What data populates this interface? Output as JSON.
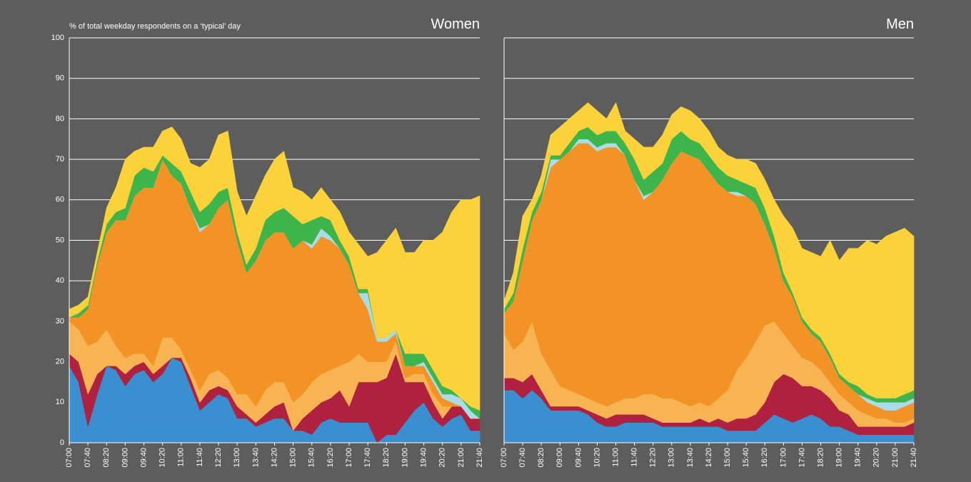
{
  "chart_data": [
    {
      "type": "area",
      "stacked": true,
      "title": "Women",
      "ylabel": "% of total weekday respondents on a ‘typical’ day",
      "categories": [
        "07:00",
        null,
        "07:40",
        null,
        "08:20",
        null,
        "09:00",
        null,
        "09:40",
        null,
        "10:20",
        null,
        "11:00",
        null,
        "11:40",
        null,
        "12:20",
        null,
        "13:00",
        null,
        "13:40",
        null,
        "14:20",
        null,
        "15:00",
        null,
        "15:40",
        null,
        "16:20",
        null,
        "17:00",
        null,
        "17:40",
        null,
        "18:20",
        null,
        "19:00",
        null,
        "19:40",
        null,
        "20:20",
        null,
        "21:00",
        null,
        "21:40"
      ],
      "ylim": [
        0,
        100
      ],
      "yticks": [
        0,
        10,
        20,
        30,
        40,
        50,
        60,
        70,
        80,
        90,
        100
      ],
      "grid": true,
      "series": [
        {
          "color": "#3a8fd0",
          "values": [
            19,
            15,
            4,
            12,
            19,
            18,
            14,
            17,
            18,
            15,
            17,
            21,
            20,
            14,
            8,
            10,
            12,
            11,
            6,
            6,
            4,
            5,
            6,
            6,
            3,
            3,
            2,
            5,
            6,
            5,
            5,
            5,
            5,
            0,
            2,
            2,
            5,
            8,
            10,
            6,
            4,
            6,
            7,
            3,
            3
          ]
        },
        {
          "color": "#b0203f",
          "values": [
            3,
            5,
            8,
            5,
            0,
            1,
            3,
            2,
            2,
            2,
            2,
            0,
            1,
            2,
            2,
            3,
            2,
            2,
            3,
            1,
            1,
            2,
            3,
            4,
            0,
            3,
            6,
            5,
            5,
            8,
            4,
            10,
            10,
            15,
            14,
            20,
            10,
            7,
            5,
            4,
            2,
            3,
            2,
            3,
            3
          ]
        },
        {
          "color": "#f8b452",
          "values": [
            8,
            8,
            12,
            8,
            9,
            5,
            4,
            3,
            2,
            2,
            7,
            5,
            2,
            2,
            3,
            4,
            4,
            3,
            3,
            5,
            4,
            6,
            6,
            5,
            7,
            6,
            7,
            7,
            7,
            6,
            11,
            7,
            5,
            5,
            4,
            3,
            1,
            2,
            2,
            2,
            3,
            0,
            0,
            0,
            0
          ]
        },
        {
          "color": "#f39325",
          "values": [
            1,
            3,
            9,
            19,
            24,
            31,
            34,
            39,
            41,
            44,
            44,
            40,
            41,
            40,
            39,
            37,
            40,
            44,
            38,
            30,
            36,
            37,
            37,
            37,
            38,
            38,
            33,
            34,
            32,
            29,
            24,
            15,
            13,
            5,
            5,
            2,
            3,
            2,
            2,
            3,
            2,
            1,
            0,
            0,
            0
          ]
        },
        {
          "color": "#a8dce9",
          "values": [
            0,
            0,
            0,
            0,
            0,
            0,
            0,
            0,
            0,
            0,
            0,
            0,
            0,
            0,
            1,
            0,
            0,
            0,
            0,
            0,
            0,
            0,
            0,
            0,
            0,
            0,
            1,
            2,
            1,
            0,
            0,
            0,
            4,
            1,
            1,
            1,
            0,
            0,
            1,
            1,
            1,
            2,
            2,
            2,
            0
          ]
        },
        {
          "color": "#3db54a",
          "values": [
            0,
            1,
            1,
            1,
            2,
            2,
            3,
            5,
            5,
            4,
            1,
            3,
            3,
            4,
            4,
            5,
            4,
            3,
            2,
            2,
            3,
            5,
            5,
            6,
            8,
            4,
            6,
            3,
            4,
            2,
            2,
            1,
            1,
            0,
            0,
            0,
            3,
            3,
            2,
            2,
            2,
            1,
            0,
            1,
            2
          ]
        },
        {
          "color": "#fcd23b",
          "values": [
            2,
            2,
            2,
            2,
            4,
            6,
            12,
            6,
            5,
            6,
            6,
            9,
            8,
            7,
            11,
            11,
            14,
            14,
            10,
            12,
            13,
            11,
            13,
            14,
            7,
            8,
            5,
            7,
            5,
            7,
            6,
            11,
            8,
            21,
            24,
            25,
            25,
            25,
            28,
            32,
            38,
            44,
            49,
            51,
            53
          ]
        }
      ]
    },
    {
      "type": "area",
      "stacked": true,
      "title": "Men",
      "categories": [
        "07:00",
        null,
        "07:40",
        null,
        "08:20",
        null,
        "09:00",
        null,
        "09:40",
        null,
        "10:20",
        null,
        "11:00",
        null,
        "11:40",
        null,
        "12:20",
        null,
        "13:00",
        null,
        "13:40",
        null,
        "14:20",
        null,
        "15:00",
        null,
        "15:40",
        null,
        "16:20",
        null,
        "17:00",
        null,
        "17:40",
        null,
        "18:20",
        null,
        "19:00",
        null,
        "19:40",
        null,
        "20:20",
        null,
        "21:00",
        null,
        "21:40"
      ],
      "ylim": [
        0,
        100
      ],
      "yticks": [
        0,
        10,
        20,
        30,
        40,
        50,
        60,
        70,
        80,
        90,
        100
      ],
      "grid": true,
      "series": [
        {
          "color": "#3a8fd0",
          "values": [
            13,
            13,
            11,
            13,
            11,
            8,
            8,
            8,
            8,
            7,
            5,
            4,
            4,
            5,
            5,
            5,
            5,
            4,
            4,
            4,
            4,
            4,
            4,
            4,
            3,
            3,
            3,
            3,
            5,
            7,
            6,
            5,
            6,
            7,
            6,
            4,
            4,
            3,
            2,
            2,
            2,
            2,
            2,
            2,
            2
          ]
        },
        {
          "color": "#b0203f",
          "values": [
            3,
            3,
            4,
            4,
            2,
            1,
            1,
            1,
            1,
            1,
            2,
            2,
            3,
            2,
            2,
            2,
            1,
            1,
            1,
            1,
            1,
            2,
            1,
            2,
            2,
            3,
            3,
            4,
            5,
            8,
            11,
            11,
            8,
            7,
            7,
            7,
            4,
            4,
            2,
            2,
            2,
            2,
            2,
            2,
            3
          ]
        },
        {
          "color": "#f8b452",
          "values": [
            11,
            7,
            10,
            13,
            9,
            9,
            5,
            4,
            3,
            3,
            3,
            3,
            3,
            4,
            4,
            5,
            6,
            6,
            6,
            5,
            4,
            4,
            4,
            5,
            8,
            12,
            15,
            18,
            19,
            15,
            10,
            8,
            7,
            6,
            5,
            4,
            4,
            3,
            4,
            3,
            2,
            2,
            1,
            1,
            1
          ]
        },
        {
          "color": "#f39325",
          "values": [
            5,
            12,
            20,
            25,
            38,
            50,
            56,
            59,
            62,
            63,
            62,
            64,
            63,
            60,
            54,
            48,
            50,
            54,
            58,
            62,
            62,
            60,
            58,
            53,
            49,
            43,
            40,
            34,
            25,
            18,
            13,
            12,
            9,
            7,
            7,
            6,
            4,
            4,
            4,
            3,
            3,
            2,
            3,
            4,
            4
          ]
        },
        {
          "color": "#a8dce9",
          "values": [
            0,
            0,
            0,
            0,
            0,
            2,
            0,
            0,
            1,
            1,
            1,
            1,
            1,
            0,
            0,
            1,
            0,
            0,
            0,
            0,
            0,
            0,
            0,
            0,
            0,
            1,
            0,
            0,
            0,
            0,
            0,
            0,
            0,
            0,
            0,
            0,
            0,
            0,
            0,
            1,
            1,
            2,
            2,
            1,
            1
          ]
        },
        {
          "color": "#3db54a",
          "values": [
            1,
            2,
            3,
            2,
            2,
            1,
            1,
            2,
            2,
            3,
            3,
            3,
            3,
            3,
            5,
            4,
            5,
            4,
            6,
            5,
            4,
            4,
            4,
            4,
            4,
            3,
            3,
            4,
            4,
            3,
            2,
            1,
            1,
            1,
            1,
            1,
            1,
            1,
            2,
            1,
            1,
            1,
            1,
            2,
            2
          ]
        },
        {
          "color": "#fcd23b",
          "values": [
            2,
            5,
            8,
            3,
            4,
            5,
            7,
            6,
            5,
            6,
            6,
            3,
            7,
            3,
            5,
            8,
            6,
            7,
            6,
            6,
            7,
            6,
            6,
            5,
            5,
            5,
            6,
            6,
            7,
            9,
            14,
            16,
            17,
            19,
            20,
            28,
            28,
            33,
            34,
            38,
            38,
            40,
            41,
            41,
            38
          ]
        }
      ]
    }
  ]
}
